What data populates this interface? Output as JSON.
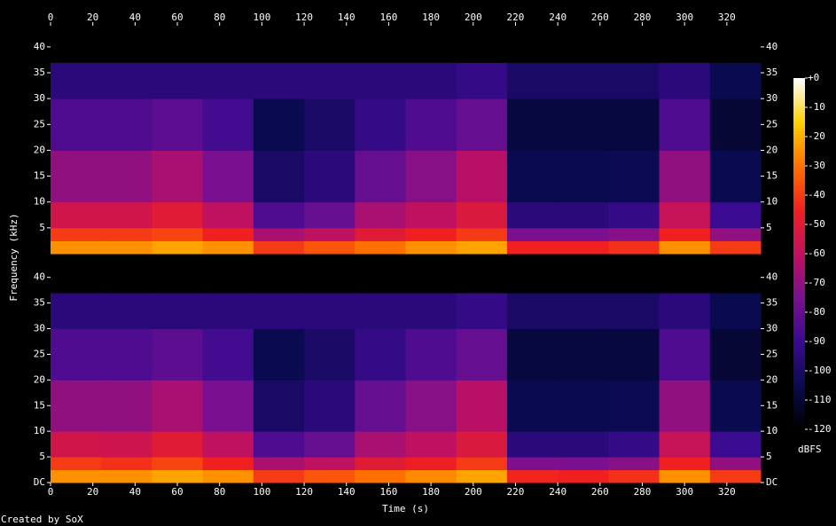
{
  "ylabel": "Frequency (kHz)",
  "credit": "Created by SoX",
  "colorbar": {
    "label": "dBFS",
    "clim": [
      -120,
      0
    ],
    "cticks": [
      {
        "value": 0,
        "label": "+0"
      },
      -10,
      -20,
      -30,
      -40,
      -50,
      -60,
      -70,
      -80,
      -90,
      -100,
      -110,
      -120
    ],
    "colormap": [
      "#000000",
      "#0a0a50",
      "#3a0a90",
      "#7a1090",
      "#c01060",
      "#f02020",
      "#ff7000",
      "#ffd000",
      "#ffffff"
    ]
  },
  "chart_data": [
    {
      "type": "spectrogram",
      "xlim": [
        0,
        336
      ],
      "xticks": [
        0,
        20,
        40,
        60,
        80,
        100,
        120,
        140,
        160,
        180,
        200,
        220,
        240,
        260,
        280,
        300,
        320
      ],
      "ylim": [
        0,
        44.1
      ],
      "yticks": [
        5,
        10,
        15,
        20,
        25,
        30,
        35,
        40
      ],
      "time_bins": [
        0,
        24,
        48,
        72,
        96,
        120,
        144,
        168,
        192,
        216,
        240,
        264,
        288,
        312,
        336
      ],
      "freq_bins": [
        0,
        2.5,
        5,
        10,
        20,
        30,
        37,
        44.1
      ],
      "values": [
        [
          -25,
          -40,
          -55,
          -70,
          -85,
          -95,
          -120
        ],
        [
          -25,
          -40,
          -55,
          -70,
          -85,
          -95,
          -120
        ],
        [
          -22,
          -38,
          -50,
          -65,
          -82,
          -95,
          -120
        ],
        [
          -25,
          -45,
          -60,
          -75,
          -88,
          -95,
          -120
        ],
        [
          -40,
          -65,
          -85,
          -100,
          -105,
          -95,
          -120
        ],
        [
          -35,
          -60,
          -80,
          -95,
          -100,
          -95,
          -120
        ],
        [
          -30,
          -50,
          -65,
          -80,
          -92,
          -95,
          -120
        ],
        [
          -25,
          -45,
          -60,
          -72,
          -85,
          -95,
          -120
        ],
        [
          -22,
          -40,
          -52,
          -62,
          -80,
          -92,
          -120
        ],
        [
          -45,
          -75,
          -95,
          -105,
          -108,
          -100,
          -120
        ],
        [
          -45,
          -75,
          -95,
          -105,
          -108,
          -100,
          -120
        ],
        [
          -42,
          -72,
          -92,
          -104,
          -108,
          -100,
          -120
        ],
        [
          -25,
          -45,
          -58,
          -70,
          -85,
          -95,
          -120
        ],
        [
          -40,
          -70,
          -90,
          -105,
          -110,
          -105,
          -120
        ]
      ]
    },
    {
      "type": "spectrogram",
      "xlabel": "Time (s)",
      "xlim": [
        0,
        336
      ],
      "xticks": [
        0,
        20,
        40,
        60,
        80,
        100,
        120,
        140,
        160,
        180,
        200,
        220,
        240,
        260,
        280,
        300,
        320
      ],
      "ylim": [
        0,
        44.1
      ],
      "yticks": [
        {
          "value": 0,
          "label": "DC"
        },
        5,
        10,
        15,
        20,
        25,
        30,
        35,
        40
      ],
      "time_bins": [
        0,
        24,
        48,
        72,
        96,
        120,
        144,
        168,
        192,
        216,
        240,
        264,
        288,
        312,
        336
      ],
      "freq_bins": [
        0,
        2.5,
        5,
        10,
        20,
        30,
        37,
        44.1
      ],
      "values": [
        [
          -25,
          -40,
          -55,
          -70,
          -85,
          -95,
          -120
        ],
        [
          -25,
          -42,
          -56,
          -70,
          -85,
          -95,
          -120
        ],
        [
          -22,
          -38,
          -50,
          -65,
          -82,
          -95,
          -120
        ],
        [
          -25,
          -45,
          -60,
          -75,
          -88,
          -95,
          -120
        ],
        [
          -40,
          -65,
          -85,
          -100,
          -105,
          -95,
          -120
        ],
        [
          -35,
          -60,
          -80,
          -95,
          -100,
          -95,
          -120
        ],
        [
          -30,
          -50,
          -65,
          -80,
          -92,
          -95,
          -120
        ],
        [
          -26,
          -46,
          -60,
          -72,
          -85,
          -95,
          -120
        ],
        [
          -22,
          -40,
          -52,
          -62,
          -80,
          -92,
          -120
        ],
        [
          -44,
          -74,
          -95,
          -105,
          -108,
          -100,
          -120
        ],
        [
          -45,
          -75,
          -95,
          -105,
          -108,
          -100,
          -120
        ],
        [
          -42,
          -72,
          -92,
          -104,
          -108,
          -100,
          -120
        ],
        [
          -25,
          -45,
          -58,
          -70,
          -85,
          -95,
          -120
        ],
        [
          -40,
          -70,
          -90,
          -105,
          -110,
          -105,
          -120
        ]
      ]
    }
  ]
}
